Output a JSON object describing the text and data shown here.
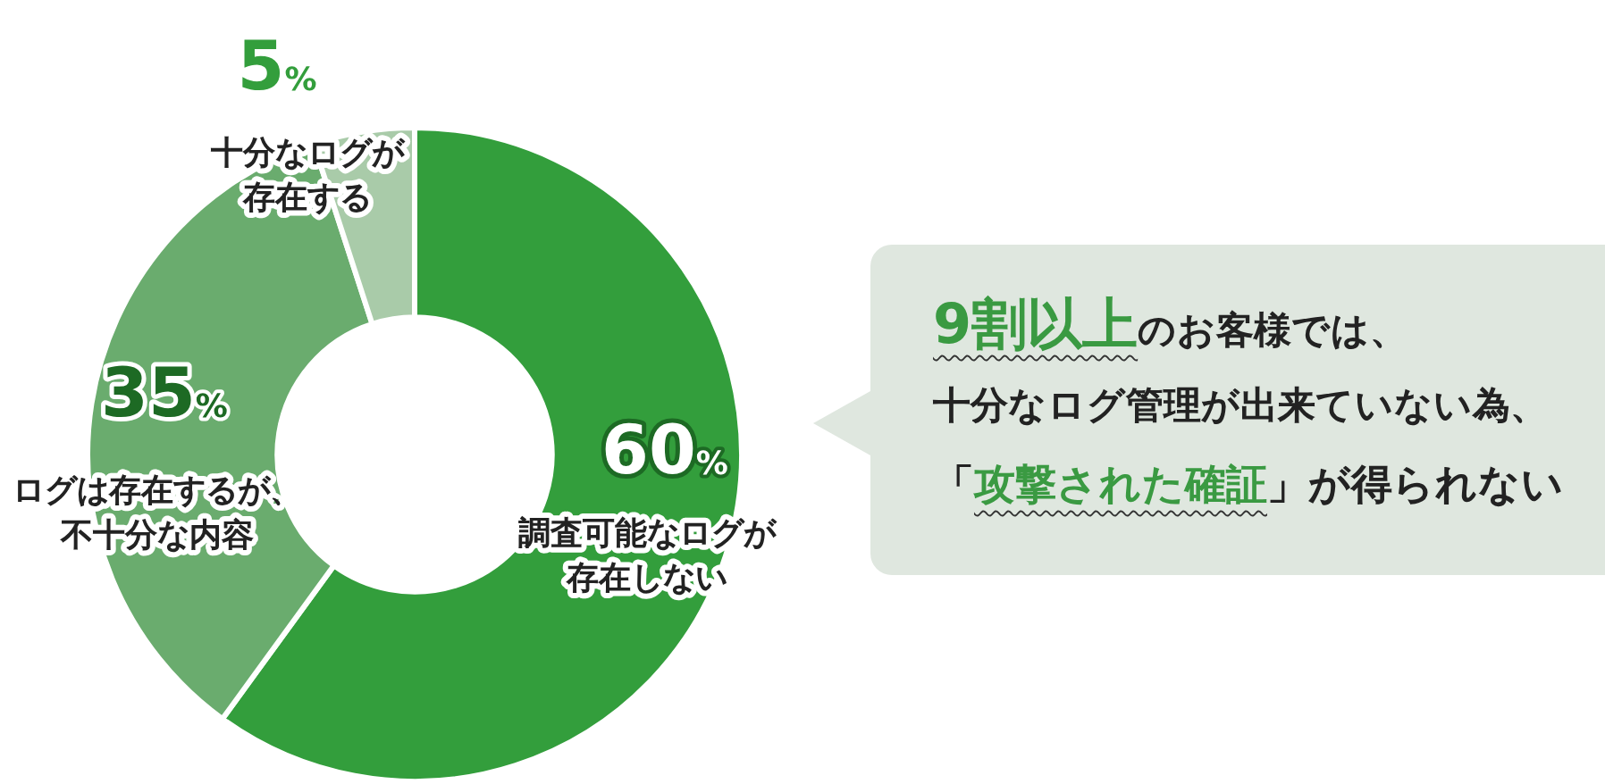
{
  "chart_data": {
    "type": "donut",
    "categories": [
      "調査可能なログが存在しない",
      "ログは存在するが、不十分な内容",
      "十分なログが存在する"
    ],
    "values": [
      60,
      35,
      5
    ],
    "value_labels": [
      "60%",
      "35%",
      "5%"
    ],
    "colors": [
      "#339e3c",
      "#6aac6e",
      "#a9cba9"
    ],
    "legend": false,
    "annotations": [
      "9割以上",
      "のお客様では、",
      "十分なログ管理が出来ていない為、",
      "「",
      "攻撃された確証",
      "」が得られない"
    ]
  }
}
